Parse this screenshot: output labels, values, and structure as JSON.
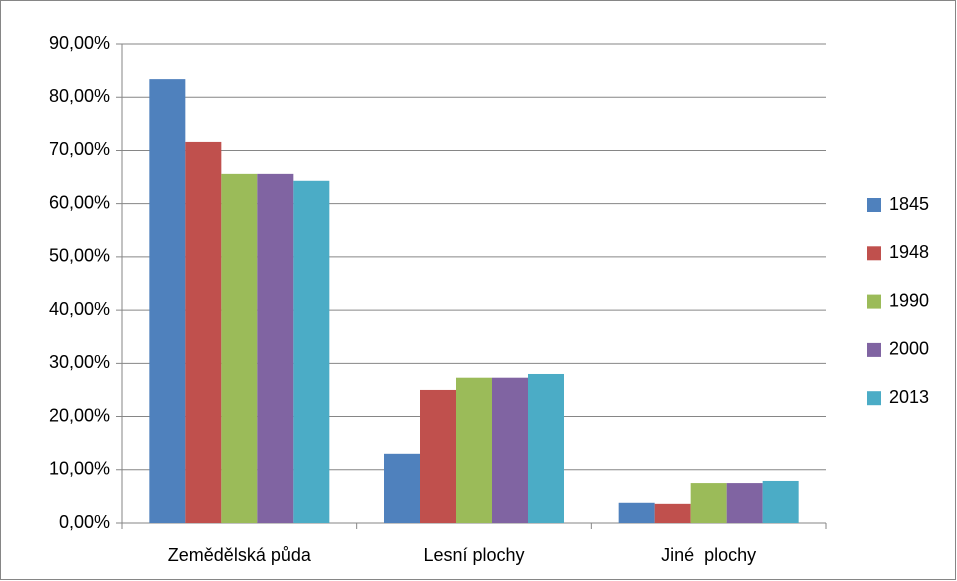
{
  "chart_data": {
    "type": "bar",
    "categories": [
      "Zemědělská půda",
      "Lesní plochy",
      "Jiné  plochy"
    ],
    "series": [
      {
        "name": "1845",
        "color": "#4f81bd",
        "values": [
          83.4,
          13.0,
          3.8
        ]
      },
      {
        "name": "1948",
        "color": "#c0504d",
        "values": [
          71.6,
          25.0,
          3.6
        ]
      },
      {
        "name": "1990",
        "color": "#9bbb59",
        "values": [
          65.6,
          27.3,
          7.5
        ]
      },
      {
        "name": "2000",
        "color": "#8064a2",
        "values": [
          65.6,
          27.3,
          7.5
        ]
      },
      {
        "name": "2013",
        "color": "#4bacc6",
        "values": [
          64.3,
          28.0,
          7.9
        ]
      }
    ],
    "ylim": [
      0,
      90
    ],
    "yticks": [
      {
        "value": 0,
        "label": "0,00%"
      },
      {
        "value": 10,
        "label": "10,00%"
      },
      {
        "value": 20,
        "label": "20,00%"
      },
      {
        "value": 30,
        "label": "30,00%"
      },
      {
        "value": 40,
        "label": "40,00%"
      },
      {
        "value": 50,
        "label": "50,00%"
      },
      {
        "value": 60,
        "label": "60,00%"
      },
      {
        "value": 70,
        "label": "70,00%"
      },
      {
        "value": 80,
        "label": "80,00%"
      },
      {
        "value": 90,
        "label": "90,00%"
      }
    ],
    "grid": true,
    "legend": "right"
  }
}
